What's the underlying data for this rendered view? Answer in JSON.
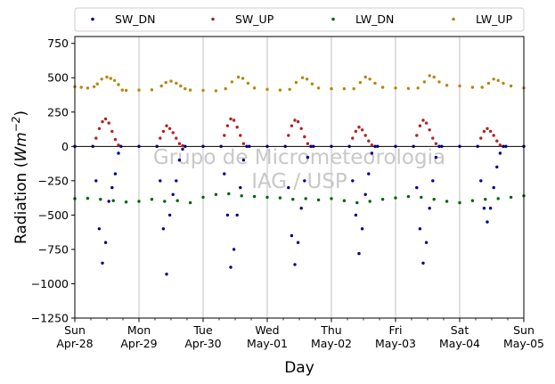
{
  "chart_data": {
    "type": "scatter",
    "xlabel": "Day",
    "ylabel_prefix": "Radiation (",
    "ylabel_unit_base": "Wm",
    "ylabel_unit_exp": "−2",
    "ylabel_suffix": ")",
    "ylim": [
      -1250,
      800
    ],
    "yticks": [
      750,
      500,
      250,
      0,
      -250,
      -500,
      -750,
      -1000,
      -1250
    ],
    "ytick_labels": [
      "750",
      "500",
      "250",
      "0",
      "−250",
      "−500",
      "−750",
      "−1000",
      "−1250"
    ],
    "xrange_days": [
      0,
      7
    ],
    "xticks": [
      {
        "day": "Sun",
        "date": "Apr-28"
      },
      {
        "day": "Mon",
        "date": "Apr-29"
      },
      {
        "day": "Tue",
        "date": "Apr-30"
      },
      {
        "day": "Wed",
        "date": "May-01"
      },
      {
        "day": "Thu",
        "date": "May-02"
      },
      {
        "day": "Fri",
        "date": "May-03"
      },
      {
        "day": "Sat",
        "date": "May-04"
      },
      {
        "day": "Sun",
        "date": "May-05"
      }
    ],
    "minor_ticks_per_day": 4,
    "vertical_grid": true,
    "legend": {
      "placement": "top",
      "entries": [
        "SW_DN",
        "SW_UP",
        "LW_DN",
        "LW_UP"
      ]
    },
    "watermark": [
      "Grupo de Micrometeorologia",
      "IAG / USP"
    ],
    "series": [
      {
        "name": "LW_UP",
        "color": "#b8860b",
        "x": [
          0.0,
          0.1,
          0.2,
          0.3,
          0.35,
          0.42,
          0.5,
          0.56,
          0.62,
          0.68,
          0.74,
          0.8,
          1.0,
          1.2,
          1.35,
          1.42,
          1.5,
          1.58,
          1.65,
          1.72,
          1.8,
          2.0,
          2.2,
          2.35,
          2.45,
          2.55,
          2.62,
          2.7,
          2.8,
          3.0,
          3.2,
          3.35,
          3.45,
          3.55,
          3.62,
          3.7,
          3.8,
          4.0,
          4.2,
          4.35,
          4.45,
          4.53,
          4.6,
          4.68,
          4.8,
          5.0,
          5.2,
          5.35,
          5.45,
          5.53,
          5.6,
          5.68,
          5.8,
          6.0,
          6.2,
          6.35,
          6.45,
          6.53,
          6.6,
          6.68,
          6.8,
          7.0
        ],
        "y": [
          435,
          430,
          425,
          435,
          455,
          490,
          505,
          495,
          480,
          450,
          410,
          408,
          410,
          412,
          440,
          465,
          475,
          460,
          440,
          420,
          410,
          408,
          405,
          420,
          470,
          505,
          495,
          460,
          425,
          415,
          410,
          415,
          465,
          500,
          490,
          455,
          425,
          420,
          420,
          420,
          465,
          505,
          490,
          460,
          430,
          425,
          422,
          425,
          470,
          515,
          505,
          470,
          445,
          440,
          430,
          430,
          460,
          490,
          480,
          460,
          440,
          425
        ]
      },
      {
        "name": "LW_DN",
        "color": "#006400",
        "x": [
          0.0,
          0.2,
          0.4,
          0.6,
          0.8,
          1.0,
          1.2,
          1.4,
          1.6,
          1.8,
          2.0,
          2.2,
          2.4,
          2.6,
          2.8,
          3.0,
          3.2,
          3.4,
          3.6,
          3.8,
          4.0,
          4.2,
          4.4,
          4.6,
          4.8,
          5.0,
          5.2,
          5.4,
          5.6,
          5.8,
          6.0,
          6.2,
          6.4,
          6.6,
          6.8,
          7.0
        ],
        "y": [
          -380,
          -378,
          -385,
          -395,
          -405,
          -400,
          -385,
          -400,
          -395,
          -410,
          -370,
          -350,
          -345,
          -360,
          -365,
          -370,
          -375,
          -385,
          -380,
          -390,
          -380,
          -395,
          -410,
          -400,
          -385,
          -375,
          -365,
          -370,
          -385,
          -400,
          -410,
          -395,
          -385,
          -380,
          -370,
          -360
        ]
      },
      {
        "name": "SW_UP",
        "color": "#b22222",
        "x": [
          0.0,
          0.28,
          0.33,
          0.38,
          0.43,
          0.48,
          0.53,
          0.58,
          0.63,
          0.68,
          0.72,
          1.0,
          1.28,
          1.33,
          1.38,
          1.43,
          1.48,
          1.53,
          1.58,
          1.63,
          1.68,
          1.72,
          2.0,
          2.28,
          2.33,
          2.38,
          2.43,
          2.48,
          2.53,
          2.58,
          2.63,
          2.68,
          2.72,
          3.0,
          3.28,
          3.33,
          3.38,
          3.43,
          3.48,
          3.53,
          3.58,
          3.63,
          3.68,
          3.72,
          4.0,
          4.28,
          4.33,
          4.38,
          4.43,
          4.48,
          4.53,
          4.58,
          4.63,
          4.68,
          4.72,
          5.0,
          5.28,
          5.33,
          5.38,
          5.43,
          5.48,
          5.53,
          5.58,
          5.63,
          5.68,
          5.72,
          6.0,
          6.28,
          6.33,
          6.38,
          6.43,
          6.48,
          6.53,
          6.58,
          6.63,
          6.68,
          6.72,
          7.0
        ],
        "y": [
          0,
          0,
          60,
          130,
          180,
          200,
          170,
          110,
          50,
          10,
          0,
          0,
          0,
          60,
          110,
          150,
          130,
          100,
          60,
          20,
          5,
          0,
          0,
          0,
          80,
          150,
          200,
          190,
          140,
          80,
          20,
          0,
          0,
          0,
          0,
          80,
          150,
          190,
          180,
          130,
          70,
          20,
          0,
          0,
          0,
          0,
          60,
          110,
          140,
          120,
          80,
          40,
          10,
          0,
          0,
          0,
          0,
          80,
          150,
          190,
          170,
          120,
          60,
          20,
          0,
          0,
          0,
          0,
          60,
          110,
          130,
          110,
          80,
          40,
          10,
          0,
          0,
          0
        ]
      },
      {
        "name": "SW_DN",
        "color": "#00008b",
        "x": [
          0.0,
          0.28,
          0.33,
          0.38,
          0.43,
          0.48,
          0.53,
          0.58,
          0.63,
          0.68,
          0.72,
          1.0,
          1.28,
          1.33,
          1.38,
          1.43,
          1.48,
          1.53,
          1.58,
          1.63,
          1.68,
          1.72,
          2.0,
          2.28,
          2.33,
          2.38,
          2.43,
          2.48,
          2.53,
          2.58,
          2.63,
          2.68,
          2.72,
          3.0,
          3.28,
          3.33,
          3.38,
          3.43,
          3.48,
          3.53,
          3.58,
          3.63,
          3.68,
          3.72,
          4.0,
          4.28,
          4.33,
          4.38,
          4.43,
          4.48,
          4.53,
          4.58,
          4.63,
          4.68,
          4.72,
          5.0,
          5.28,
          5.33,
          5.38,
          5.43,
          5.48,
          5.53,
          5.58,
          5.63,
          5.68,
          5.72,
          6.0,
          6.28,
          6.33,
          6.38,
          6.43,
          6.48,
          6.53,
          6.58,
          6.63,
          6.68,
          6.72,
          7.0
        ],
        "y": [
          0,
          0,
          -250,
          -600,
          -850,
          -700,
          -400,
          -300,
          -200,
          -50,
          0,
          0,
          0,
          -250,
          -600,
          -930,
          -500,
          -350,
          -250,
          -100,
          -20,
          0,
          0,
          0,
          -200,
          -500,
          -880,
          -750,
          -500,
          -300,
          -100,
          0,
          0,
          0,
          0,
          -300,
          -650,
          -860,
          -700,
          -450,
          -250,
          -80,
          0,
          0,
          0,
          0,
          -250,
          -500,
          -780,
          -600,
          -350,
          -200,
          -50,
          0,
          0,
          0,
          0,
          -300,
          -600,
          -850,
          -700,
          -450,
          -250,
          -80,
          0,
          0,
          0,
          0,
          -250,
          -450,
          -550,
          -450,
          -300,
          -150,
          -50,
          0,
          0,
          0
        ]
      }
    ]
  }
}
